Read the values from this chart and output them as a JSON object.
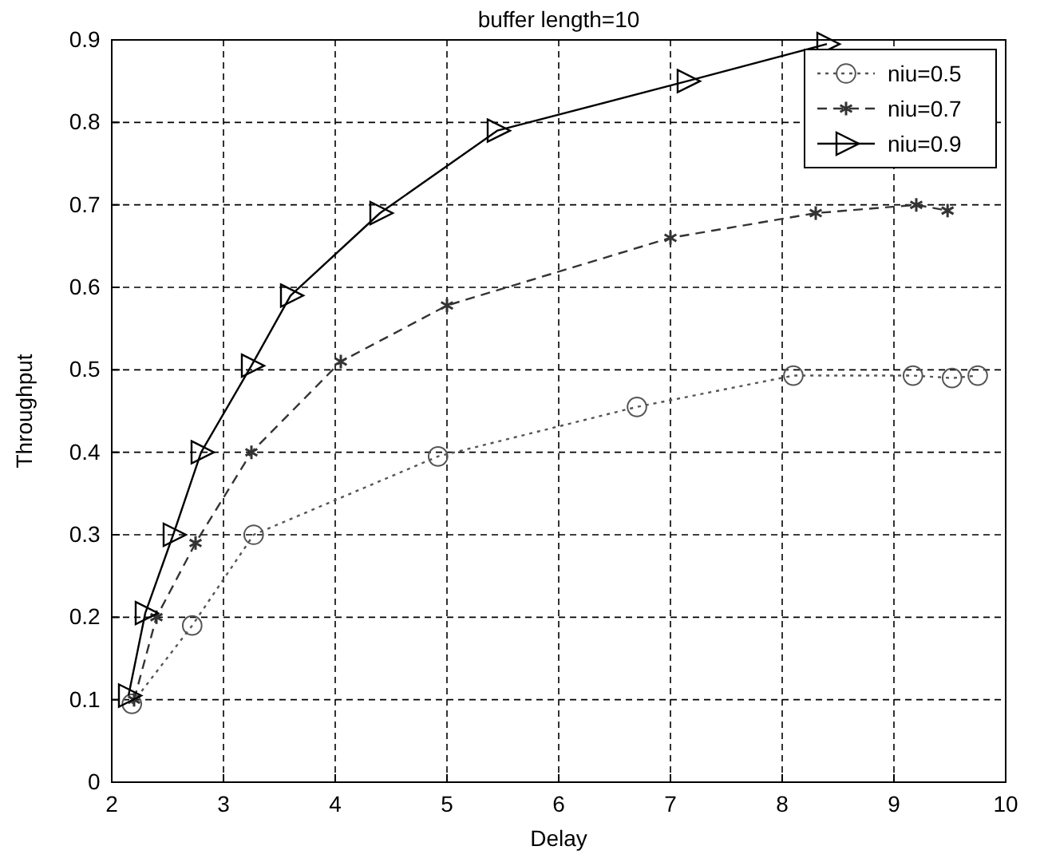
{
  "chart_data": {
    "type": "line",
    "title": "buffer length=10",
    "xlabel": "Delay",
    "ylabel": "Throughput",
    "xlim": [
      2,
      10
    ],
    "xticks": [
      2,
      3,
      4,
      5,
      6,
      7,
      8,
      9,
      10
    ],
    "ylim": [
      0,
      0.9
    ],
    "yticks": [
      0,
      0.1,
      0.2,
      0.3,
      0.4,
      0.5,
      0.6,
      0.7,
      0.8,
      0.9
    ],
    "grid": true,
    "legend": "top right",
    "series": [
      {
        "name": "niu=0.5",
        "color": "#555555",
        "marker": "circle",
        "line_style": "dotted",
        "x": [
          2.18,
          2.72,
          3.27,
          4.92,
          6.7,
          8.1,
          9.17,
          9.52,
          9.75
        ],
        "values": [
          0.095,
          0.19,
          0.3,
          0.395,
          0.455,
          0.493,
          0.493,
          0.49,
          0.493
        ]
      },
      {
        "name": "niu=0.7",
        "color": "#333333",
        "marker": "cross",
        "line_style": "dashed",
        "x": [
          2.2,
          2.4,
          2.75,
          3.25,
          4.05,
          5.0,
          7.0,
          8.3,
          9.2,
          9.48
        ],
        "values": [
          0.1,
          0.2,
          0.29,
          0.4,
          0.51,
          0.578,
          0.66,
          0.69,
          0.7,
          0.693
        ]
      },
      {
        "name": "niu=0.9",
        "color": "#000000",
        "marker": "triangle",
        "line_style": "solid",
        "x": [
          2.15,
          2.3,
          2.55,
          2.8,
          3.25,
          3.6,
          4.4,
          5.45,
          7.15,
          8.4
        ],
        "values": [
          0.105,
          0.205,
          0.3,
          0.4,
          0.505,
          0.59,
          0.69,
          0.79,
          0.85,
          0.895
        ]
      }
    ]
  }
}
